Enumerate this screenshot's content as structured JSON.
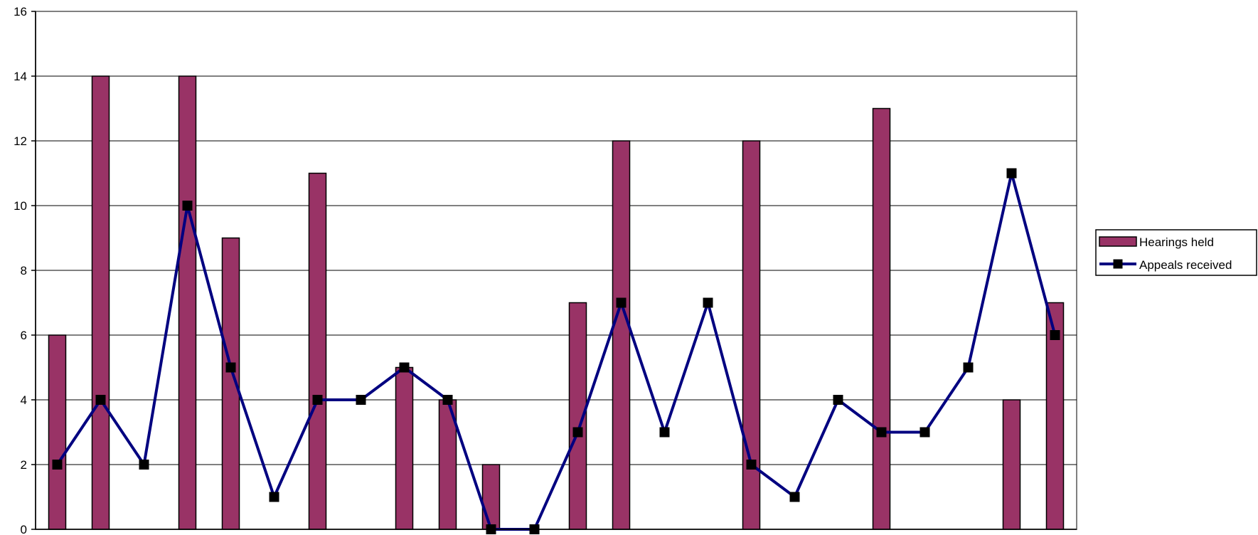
{
  "chart_data": {
    "type": "bar",
    "title": "",
    "xlabel": "",
    "ylabel": "",
    "ylim": [
      0,
      16
    ],
    "yticks": [
      0,
      2,
      4,
      6,
      8,
      10,
      12,
      14,
      16
    ],
    "ytick_labels": [
      "0",
      "2",
      "4",
      "6",
      "8",
      "10",
      "12",
      "14",
      "16"
    ],
    "grid": true,
    "legend_position": "right",
    "categories_count": 24,
    "series": [
      {
        "name": "Hearings held",
        "kind": "bar",
        "color": "#993366",
        "values": [
          6,
          14,
          0,
          14,
          9,
          0,
          11,
          0,
          5,
          4,
          2,
          0,
          7,
          12,
          0,
          0,
          12,
          0,
          0,
          13,
          0,
          0,
          4,
          7
        ]
      },
      {
        "name": "Appeals received",
        "kind": "line",
        "color": "#000080",
        "marker_color": "#000000",
        "values": [
          2,
          4,
          2,
          10,
          5,
          1,
          4,
          4,
          5,
          4,
          0,
          0,
          3,
          7,
          3,
          7,
          2,
          1,
          4,
          3,
          3,
          5,
          11,
          6
        ]
      }
    ]
  }
}
